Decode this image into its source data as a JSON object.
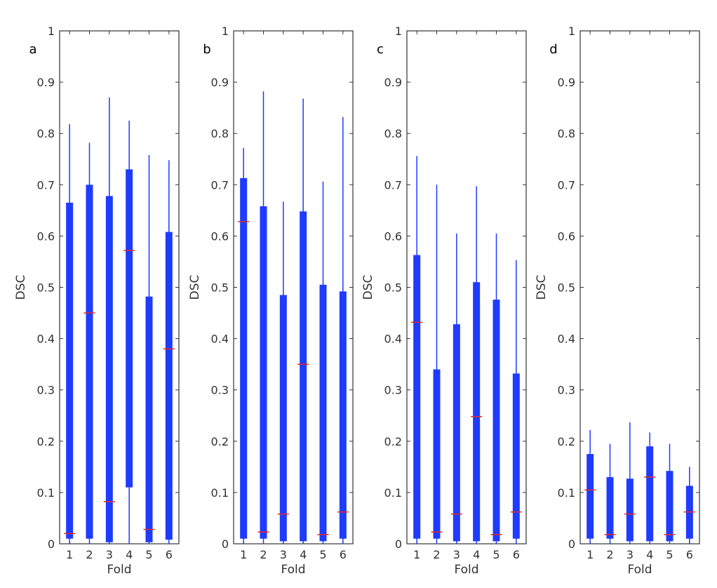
{
  "chart_data": [
    {
      "type": "box",
      "panel_label": "a",
      "xlabel": "Fold",
      "ylabel": "DSC",
      "categories": [
        "1",
        "2",
        "3",
        "4",
        "5",
        "6"
      ],
      "ylim": [
        0,
        1
      ],
      "yticks": [
        "0",
        "0.1",
        "0.2",
        "0.3",
        "0.4",
        "0.5",
        "0.6",
        "0.7",
        "0.8",
        "0.9",
        "1"
      ],
      "whisker_low": [
        0,
        0,
        0,
        0,
        0,
        0
      ],
      "q1": [
        0.01,
        0.01,
        0.003,
        0.11,
        0.003,
        0.008
      ],
      "median": [
        0.02,
        0.45,
        0.082,
        0.572,
        0.028,
        0.38
      ],
      "q3": [
        0.665,
        0.7,
        0.678,
        0.73,
        0.482,
        0.608
      ],
      "whisker_high": [
        0.818,
        0.782,
        0.87,
        0.825,
        0.758,
        0.748
      ]
    },
    {
      "type": "box",
      "panel_label": "b",
      "xlabel": "Fold",
      "ylabel": "DSC",
      "categories": [
        "1",
        "2",
        "3",
        "4",
        "5",
        "6"
      ],
      "ylim": [
        0,
        1
      ],
      "yticks": [
        "0",
        "0.1",
        "0.2",
        "0.3",
        "0.4",
        "0.5",
        "0.6",
        "0.7",
        "0.8",
        "0.9",
        "1"
      ],
      "whisker_low": [
        0,
        0,
        0,
        0,
        0,
        0
      ],
      "q1": [
        0.01,
        0.01,
        0.005,
        0.005,
        0.005,
        0.01
      ],
      "median": [
        0.628,
        0.023,
        0.058,
        0.35,
        0.018,
        0.062
      ],
      "q3": [
        0.713,
        0.658,
        0.485,
        0.648,
        0.505,
        0.492
      ],
      "whisker_high": [
        0.772,
        0.882,
        0.667,
        0.868,
        0.706,
        0.832
      ]
    },
    {
      "type": "box",
      "panel_label": "c",
      "xlabel": "Fold",
      "ylabel": "DSC",
      "categories": [
        "1",
        "2",
        "3",
        "4",
        "5",
        "6"
      ],
      "ylim": [
        0,
        1
      ],
      "yticks": [
        "0",
        "0.1",
        "0.2",
        "0.3",
        "0.4",
        "0.5",
        "0.6",
        "0.7",
        "0.8",
        "0.9",
        "1"
      ],
      "whisker_low": [
        0,
        0,
        0,
        0,
        0,
        0
      ],
      "q1": [
        0.01,
        0.01,
        0.005,
        0.005,
        0.005,
        0.01
      ],
      "median": [
        0.432,
        0.023,
        0.058,
        0.248,
        0.018,
        0.062
      ],
      "q3": [
        0.563,
        0.34,
        0.428,
        0.51,
        0.476,
        0.332
      ],
      "whisker_high": [
        0.756,
        0.7,
        0.605,
        0.697,
        0.605,
        0.553
      ]
    },
    {
      "type": "box",
      "panel_label": "d",
      "xlabel": "Fold",
      "ylabel": "DSC",
      "categories": [
        "1",
        "2",
        "3",
        "4",
        "5",
        "6"
      ],
      "ylim": [
        0,
        1
      ],
      "yticks": [
        "0",
        "0.1",
        "0.2",
        "0.3",
        "0.4",
        "0.5",
        "0.6",
        "0.7",
        "0.8",
        "0.9",
        "1"
      ],
      "whisker_low": [
        0,
        0,
        0,
        0,
        0,
        0
      ],
      "q1": [
        0.01,
        0.01,
        0.005,
        0.005,
        0.005,
        0.01
      ],
      "median": [
        0.105,
        0.018,
        0.058,
        0.13,
        0.018,
        0.062
      ],
      "q3": [
        0.175,
        0.13,
        0.127,
        0.19,
        0.142,
        0.113
      ],
      "whisker_high": [
        0.222,
        0.195,
        0.237,
        0.217,
        0.195,
        0.15
      ]
    }
  ],
  "colors": {
    "box": "#1f3bff",
    "median": "#e8261e",
    "axis": "#333333"
  }
}
